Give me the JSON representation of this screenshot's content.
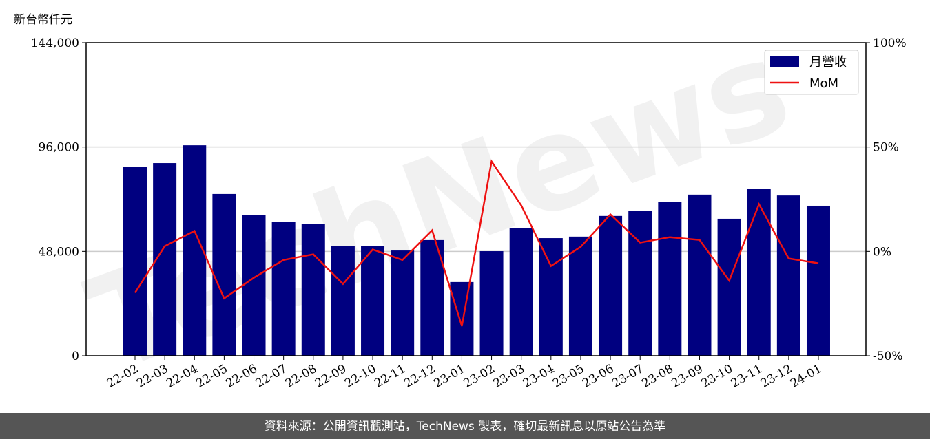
{
  "chart_data": {
    "type": "bar-line",
    "y_axis_label": "新台幣仟元",
    "watermark": "TechNews",
    "footer": "資料來源：公開資訊觀測站，TechNews 製表，確切最新訊息以原站公告為準",
    "categories": [
      "22-02",
      "22-03",
      "22-04",
      "22-05",
      "22-06",
      "22-07",
      "22-08",
      "22-09",
      "22-10",
      "22-11",
      "22-12",
      "23-01",
      "23-02",
      "23-03",
      "23-04",
      "23-05",
      "23-06",
      "23-07",
      "23-08",
      "23-09",
      "23-10",
      "23-11",
      "23-12",
      "24-01"
    ],
    "series": [
      {
        "name": "月營收",
        "type": "bar",
        "color": "#000080",
        "values": [
          87000,
          88600,
          96800,
          74400,
          64600,
          61700,
          60500,
          50600,
          50600,
          48400,
          53200,
          33900,
          48100,
          58600,
          54100,
          54800,
          64300,
          66500,
          70600,
          74100,
          63000,
          76900,
          73700,
          69000
        ]
      },
      {
        "name": "MoM",
        "type": "line",
        "axis": "y2",
        "color": "#ee1111",
        "values": [
          -19.8,
          2.5,
          9.8,
          -22.5,
          -12.6,
          -4.1,
          -1.4,
          -15.6,
          0.9,
          -4.1,
          10.1,
          -35.8,
          43.1,
          22.0,
          -7.0,
          2.2,
          17.7,
          4.2,
          6.8,
          5.5,
          -14.0,
          22.6,
          -3.4,
          -5.7
        ]
      }
    ],
    "ylim": [
      0,
      144000
    ],
    "yticks": [
      0,
      {
        "value": 48000,
        "label": "48,000"
      },
      {
        "value": 96000,
        "label": "96,000"
      },
      {
        "value": 144000,
        "label": "144,000"
      }
    ],
    "y2lim": [
      -50,
      100
    ],
    "y2ticks": [
      {
        "value": -50,
        "label": "-50%"
      },
      {
        "value": 0,
        "label": "0%"
      },
      {
        "value": 50,
        "label": "50%"
      },
      {
        "value": 100,
        "label": "100%"
      }
    ],
    "grid": true,
    "legend": "upper right"
  }
}
